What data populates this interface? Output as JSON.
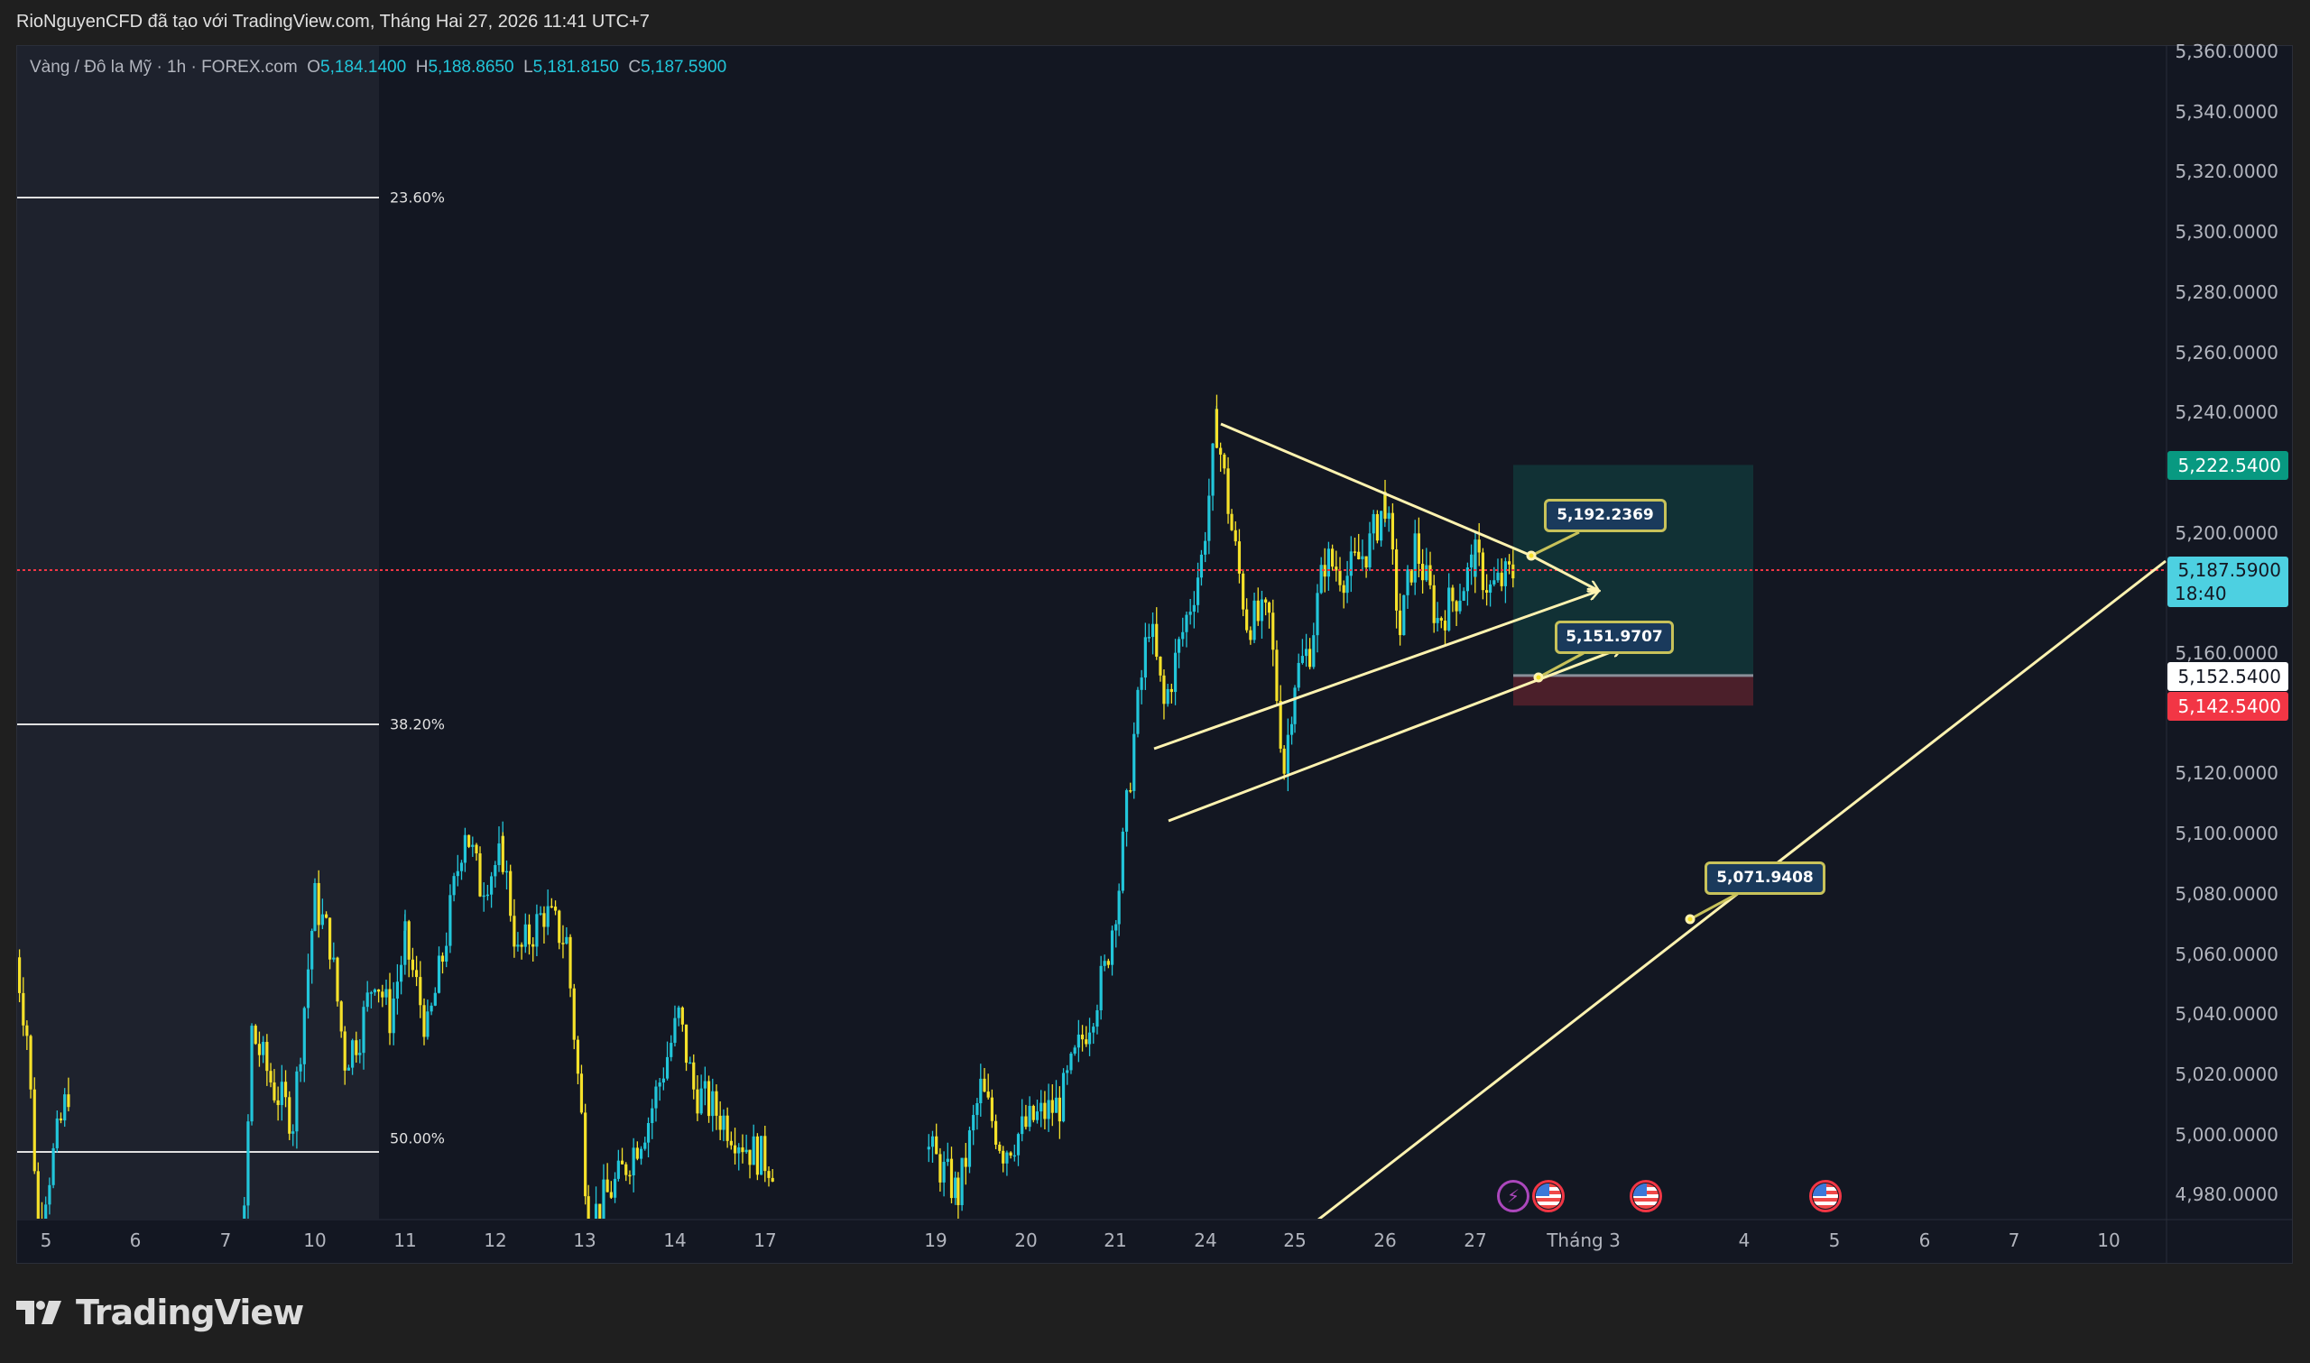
{
  "header": {
    "attribution": "RioNguyenCFD đã tạo với TradingView.com, Tháng Hai 27, 2026 11:41 UTC+7"
  },
  "legend": {
    "symbol": "Vàng / Đô la Mỹ · 1h · FOREX.com",
    "open_label": "O",
    "open": "5,184.1400",
    "high_label": "H",
    "high": "5,188.8650",
    "low_label": "L",
    "low": "5,181.8150",
    "close_label": "C",
    "close": "5,187.5900"
  },
  "colors": {
    "background": "#131722",
    "up": "#22c6da",
    "down": "#f5e12a",
    "take_profit": "#089981",
    "stop_loss": "#f23645",
    "drawing": "#fff3b0",
    "callout_border": "#c8c25a"
  },
  "fib_levels": [
    "23.60%",
    "38.20%",
    "50.00%"
  ],
  "callouts": [
    "5,192.2369",
    "5,151.9707",
    "5,071.9408"
  ],
  "badges": {
    "take_profit": "5,222.5400",
    "last_price": "5,187.5900",
    "countdown": "18:40",
    "entry": "5,152.5400",
    "stop_loss": "5,142.5400"
  },
  "event_icons": [
    "lightning-icon",
    "us-flag-icon",
    "us-flag-icon",
    "us-flag-icon"
  ],
  "logo": "TradingView",
  "chart_data": {
    "type": "candlestick",
    "title": "",
    "y_axis": {
      "range": [
        4970,
        5365
      ],
      "ticks": [
        "5,360.0000",
        "5,340.0000",
        "5,320.0000",
        "5,300.0000",
        "5,280.0000",
        "5,260.0000",
        "5,240.0000",
        "5,200.0000",
        "5,160.0000",
        "5,120.0000",
        "5,100.0000",
        "5,080.0000",
        "5,060.0000",
        "5,040.0000",
        "5,020.0000",
        "5,000.0000",
        "4,980.0000"
      ]
    },
    "x_axis": {
      "ticks": [
        "5",
        "6",
        "7",
        "10",
        "11",
        "12",
        "13",
        "14",
        "17",
        "19",
        "20",
        "21",
        "24",
        "25",
        "26",
        "27",
        "Tháng 3",
        "4",
        "5",
        "6",
        "7",
        "10"
      ]
    },
    "grid": false,
    "approx_close_path": [
      [
        "2026-02-04 16:00",
        5059
      ],
      [
        "2026-02-04 19:00",
        5034
      ],
      [
        "2026-02-04 22:00",
        4971
      ],
      [
        "2026-02-05 06:00",
        5015
      ],
      [
        "2026-02-05 07:00",
        4971
      ],
      null,
      [
        "2026-02-07 05:00",
        4971
      ],
      [
        "2026-02-07 07:00",
        5034
      ],
      [
        "2026-02-07 13:00",
        5015
      ],
      [
        "2026-02-07 18:00",
        5005
      ],
      [
        "2026-02-10 00:00",
        5078
      ],
      [
        "2026-02-10 04:00",
        5064
      ],
      [
        "2026-02-10 08:00",
        5025
      ],
      [
        "2026-02-10 12:00",
        5034
      ],
      [
        "2026-02-10 16:00",
        5054
      ],
      [
        "2026-02-10 20:00",
        5039
      ],
      [
        "2026-02-11 00:00",
        5064
      ],
      [
        "2026-02-11 06:00",
        5034
      ],
      [
        "2026-02-11 10:00",
        5059
      ],
      [
        "2026-02-11 16:00",
        5103
      ],
      [
        "2026-02-11 20:00",
        5083
      ],
      [
        "2026-02-12 02:00",
        5093
      ],
      [
        "2026-02-12 06:00",
        5059
      ],
      [
        "2026-02-12 13:00",
        5074
      ],
      [
        "2026-02-12 19:00",
        5064
      ],
      [
        "2026-02-12 23:00",
        5005
      ],
      [
        "2026-02-13 01:00",
        4971
      ],
      [
        "2026-02-13 09:00",
        4985
      ],
      [
        "2026-02-13 17:00",
        5005
      ],
      [
        "2026-02-14 01:00",
        5039
      ],
      [
        "2026-02-14 05:00",
        5015
      ],
      [
        "2026-02-14 13:00",
        5005
      ],
      [
        "2026-02-14 20:00",
        4995
      ],
      [
        "2026-02-17 02:00",
        4990
      ],
      null,
      [
        "2026-02-18 22:00",
        4995
      ],
      [
        "2026-02-19 06:00",
        4980
      ],
      [
        "2026-02-19 12:00",
        5015
      ],
      [
        "2026-02-19 18:00",
        4995
      ],
      [
        "2026-02-20 02:00",
        5005
      ],
      [
        "2026-02-20 09:00",
        5010
      ],
      [
        "2026-02-20 17:00",
        5039
      ],
      [
        "2026-02-20 21:00",
        5054
      ],
      [
        "2026-02-21 01:00",
        5083
      ],
      [
        "2026-02-21 05:00",
        5132
      ],
      [
        "2026-02-21 09:00",
        5171
      ],
      [
        "2026-02-21 13:00",
        5142
      ],
      [
        "2026-02-21 17:00",
        5162
      ],
      [
        "2026-02-21 23:00",
        5191
      ],
      [
        "2026-02-24 03:00",
        5235
      ],
      [
        "2026-02-24 07:00",
        5201
      ],
      [
        "2026-02-24 11:00",
        5171
      ],
      [
        "2026-02-24 17:00",
        5171
      ],
      [
        "2026-02-24 21:00",
        5122
      ],
      [
        "2026-02-25 00:00",
        5152
      ],
      [
        "2026-02-25 04:00",
        5162
      ],
      [
        "2026-02-25 08:00",
        5191
      ],
      [
        "2026-02-25 14:00",
        5186
      ],
      [
        "2026-02-25 20:00",
        5196
      ],
      [
        "2026-02-26 00:00",
        5211
      ],
      [
        "2026-02-26 04:00",
        5167
      ],
      [
        "2026-02-26 08:00",
        5196
      ],
      [
        "2026-02-26 14:00",
        5171
      ],
      [
        "2026-02-26 20:00",
        5181
      ],
      [
        "2026-02-27 00:00",
        5191
      ],
      [
        "2026-02-27 04:00",
        5181
      ],
      [
        "2026-02-27 11:00",
        5187.59
      ]
    ],
    "last_price": 5187.59,
    "position": {
      "take_profit": 5222.54,
      "entry": 5152.54,
      "stop_loss": 5142.54
    }
  }
}
